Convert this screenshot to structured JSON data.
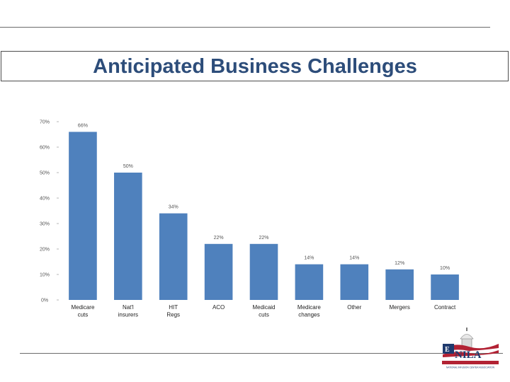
{
  "slide": {
    "title": "Anticipated Business Challenges"
  },
  "chart_data": {
    "type": "bar",
    "categories": [
      [
        "Medicare",
        "cuts"
      ],
      [
        "Nat'l",
        "insurers"
      ],
      [
        "HIT",
        "Regs"
      ],
      [
        "ACO"
      ],
      [
        "Medicaid",
        "cuts"
      ],
      [
        "Medicare",
        "changes"
      ],
      [
        "Other"
      ],
      [
        "Mergers"
      ],
      [
        "Contract"
      ]
    ],
    "values": [
      66,
      50,
      34,
      22,
      22,
      14,
      14,
      12,
      10
    ],
    "value_labels": [
      "66%",
      "50%",
      "34%",
      "22%",
      "22%",
      "14%",
      "14%",
      "12%",
      "10%"
    ],
    "yticks": [
      0,
      10,
      20,
      30,
      40,
      50,
      60,
      70
    ],
    "ytick_labels": [
      "0%",
      "10%",
      "20%",
      "30%",
      "40%",
      "50%",
      "60%",
      "70%"
    ],
    "ylim": [
      0,
      70
    ],
    "bar_color": "#4f81bd",
    "grid": false,
    "title": "",
    "xlabel": "",
    "ylabel": ""
  },
  "logo": {
    "name": "NILA",
    "tagline": "NATIONAL INFUSION CENTER ASSOCIATION"
  },
  "colors": {
    "title": "#2d4d7a",
    "rule": "#6b6b6b"
  }
}
